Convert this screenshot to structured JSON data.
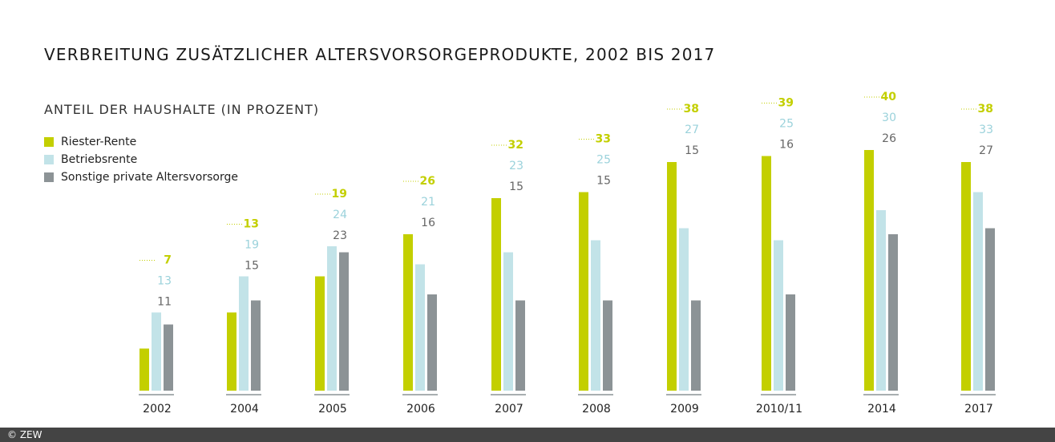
{
  "title": "VERBREITUNG ZUSÄTZLICHER ALTERSVORSORGEPRODUKTE, 2002 BIS 2017",
  "subtitle": "ANTEIL DER HAUSHALTE (IN PROZENT)",
  "footer": "© ZEW",
  "colors": {
    "riester": "#c3cf00",
    "betrieb": "#c2e3e8",
    "sonstige": "#8c9396",
    "riester_label": "#c3cf00",
    "betrieb_label": "#9bd2db",
    "sonstige_label": "#666666"
  },
  "chart_data": {
    "type": "bar",
    "categories": [
      "2002",
      "2004",
      "2005",
      "2006",
      "2007",
      "2008",
      "2009",
      "2010/11",
      "2014",
      "2017"
    ],
    "series": [
      {
        "name": "Riester-Rente",
        "values": [
          7,
          13,
          19,
          26,
          32,
          33,
          38,
          39,
          40,
          38
        ]
      },
      {
        "name": "Betriebsrente",
        "values": [
          13,
          19,
          24,
          21,
          23,
          25,
          27,
          25,
          30,
          33
        ]
      },
      {
        "name": "Sonstige private Altersvorsorge",
        "values": [
          11,
          15,
          23,
          16,
          15,
          15,
          15,
          16,
          26,
          27
        ]
      }
    ],
    "title": "VERBREITUNG ZUSÄTZLICHER ALTERSVORSORGEPRODUKTE, 2002 BIS 2017",
    "ylabel": "ANTEIL DER HAUSHALTE (IN PROZENT)",
    "ylim": [
      0,
      40
    ],
    "grid": false,
    "legend": "top-left"
  }
}
